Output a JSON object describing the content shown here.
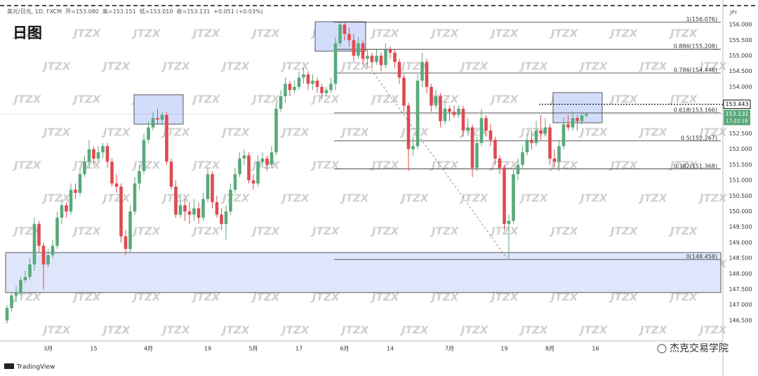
{
  "chart_data": {
    "type": "candlestick",
    "title": "日图",
    "header": {
      "symbol": "美元/日元, 1D, FXCM",
      "items": [
        "开=153.080",
        "高=153.151",
        "低=153.010",
        "收=153.131",
        "+0.051 (+0.03%)"
      ]
    },
    "categories": [
      null,
      null,
      null,
      null,
      null,
      null,
      null,
      null,
      null,
      "3月",
      null,
      null,
      null,
      null,
      null,
      null,
      null,
      null,
      null,
      "15",
      null,
      null,
      null,
      null,
      null,
      null,
      null,
      null,
      null,
      null,
      null,
      "4月",
      null,
      null,
      null,
      null,
      null,
      null,
      null,
      null,
      null,
      null,
      null,
      null,
      "19",
      null,
      null,
      null,
      null,
      null,
      null,
      null,
      null,
      null,
      "5月",
      null,
      null,
      null,
      null,
      null,
      null,
      null,
      null,
      null,
      "17",
      null,
      null,
      null,
      null,
      null,
      null,
      null,
      null,
      null,
      "6月",
      null,
      null,
      null,
      null,
      null,
      null,
      null,
      null,
      null,
      "14",
      null,
      null,
      null,
      null,
      null,
      null,
      null,
      null,
      null,
      null,
      null,
      null,
      "7月",
      null,
      null,
      null,
      null,
      null,
      null,
      null,
      null,
      null,
      null,
      null,
      "19",
      null,
      null,
      null,
      null,
      null,
      null,
      null,
      null,
      null,
      "8月",
      null,
      null,
      null,
      null,
      null,
      null,
      null,
      null,
      null,
      "16"
    ],
    "open": [
      146.5,
      146.9,
      147.3,
      147.4,
      147.8,
      147.9,
      148.3,
      149.6,
      148.9,
      148.3,
      148.6,
      148.9,
      149.8,
      150.2,
      150.0,
      150.7,
      150.6,
      151.2,
      151.6,
      152.0,
      151.7,
      151.9,
      152.1,
      151.6,
      150.9,
      150.8,
      149.2,
      148.8,
      150.0,
      150.9,
      151.3,
      152.3,
      152.7,
      153.0,
      152.95,
      153.1,
      151.6,
      150.8,
      149.9,
      150.2,
      150.0,
      149.9,
      150.1,
      149.8,
      150.4,
      151.2,
      150.3,
      149.9,
      149.6,
      150.0,
      150.7,
      151.2,
      151.7,
      151.8,
      151.0,
      150.9,
      151.6,
      151.7,
      151.5,
      151.9,
      153.3,
      153.7,
      154.1,
      153.9,
      154.0,
      154.3,
      154.4,
      154.1,
      154.2,
      154.0,
      153.8,
      153.9,
      154.1,
      155.4,
      156.0,
      155.7,
      155.5,
      155.0,
      155.4,
      154.9,
      155.0,
      154.8,
      155.0,
      154.7,
      155.2,
      155.1,
      154.8,
      154.3,
      153.4,
      152.0,
      152.1,
      154.2,
      154.8,
      154.0,
      153.4,
      153.7,
      152.9,
      153.3,
      153.2,
      153.1,
      153.3,
      152.6,
      152.7,
      151.4,
      152.2,
      153.0,
      152.6,
      152.3,
      151.7,
      151.4,
      149.6,
      149.7,
      151.2,
      151.5,
      151.9,
      152.3,
      152.2,
      152.6,
      152.5,
      152.7,
      151.7,
      151.6,
      152.1,
      152.8,
      152.7,
      153.0,
      152.9,
      153.08,
      null,
      null
    ],
    "high": [
      147.0,
      147.4,
      147.6,
      147.9,
      148.1,
      148.5,
      149.8,
      149.7,
      149.0,
      148.8,
      149.1,
      150.0,
      150.4,
      150.3,
      150.9,
      150.9,
      151.4,
      151.8,
      152.3,
      152.1,
      152.1,
      152.2,
      152.2,
      151.7,
      151.2,
      150.9,
      149.4,
      150.2,
      151.1,
      151.5,
      152.5,
      152.9,
      153.2,
      153.3,
      153.2,
      153.2,
      151.7,
      151.0,
      150.5,
      150.4,
      150.3,
      150.4,
      150.3,
      150.6,
      151.4,
      151.3,
      150.5,
      150.1,
      150.2,
      150.9,
      151.4,
      151.9,
      152.0,
      151.9,
      151.2,
      151.8,
      151.9,
      151.8,
      152.1,
      153.5,
      153.9,
      154.3,
      154.2,
      154.2,
      154.5,
      154.6,
      154.5,
      154.4,
      154.3,
      154.1,
      154.0,
      154.3,
      155.6,
      156.076,
      156.05,
      155.9,
      155.7,
      155.6,
      155.5,
      155.2,
      155.1,
      155.2,
      155.1,
      155.4,
      155.3,
      155.2,
      154.9,
      154.4,
      153.5,
      152.4,
      154.4,
      155.1,
      154.9,
      154.1,
      153.9,
      153.8,
      153.5,
      153.4,
      153.4,
      153.4,
      153.4,
      153.0,
      152.8,
      152.4,
      153.3,
      153.1,
      152.8,
      152.4,
      151.8,
      151.5,
      149.9,
      151.4,
      151.7,
      152.1,
      152.5,
      152.6,
      152.9,
      153.1,
      153.0,
      152.8,
      152.0,
      152.3,
      153.0,
      153.1,
      153.2,
      153.1,
      153.2,
      153.151,
      null,
      null
    ],
    "low": [
      146.4,
      146.8,
      147.1,
      147.3,
      147.7,
      147.8,
      148.1,
      148.7,
      147.5,
      148.2,
      148.5,
      148.8,
      149.6,
      149.8,
      149.9,
      150.4,
      150.5,
      151.1,
      151.4,
      151.5,
      151.6,
      151.7,
      151.4,
      150.8,
      150.6,
      149.0,
      148.6,
      148.7,
      149.9,
      150.7,
      151.2,
      152.2,
      152.6,
      152.8,
      152.8,
      151.5,
      150.7,
      149.8,
      149.8,
      149.7,
      149.6,
      149.7,
      149.6,
      149.7,
      150.3,
      150.1,
      149.8,
      149.4,
      149.1,
      149.9,
      150.6,
      151.1,
      151.5,
      150.9,
      150.7,
      150.8,
      151.4,
      151.3,
      151.4,
      151.8,
      153.2,
      153.5,
      153.7,
      153.8,
      153.9,
      154.1,
      153.9,
      153.9,
      153.8,
      153.6,
      153.7,
      153.8,
      153.9,
      155.3,
      155.5,
      155.3,
      154.8,
      154.9,
      154.7,
      154.6,
      154.6,
      154.7,
      154.5,
      154.6,
      154.9,
      154.6,
      154.1,
      153.2,
      151.3,
      151.8,
      152.0,
      154.0,
      153.8,
      153.2,
      153.3,
      152.7,
      152.8,
      152.9,
      153.0,
      153.0,
      152.4,
      152.5,
      151.1,
      151.3,
      152.1,
      152.4,
      152.1,
      151.5,
      151.2,
      149.4,
      148.458,
      149.6,
      151.0,
      151.4,
      151.8,
      152.0,
      152.1,
      152.3,
      152.4,
      151.5,
      151.4,
      151.3,
      152.0,
      152.6,
      152.6,
      152.6,
      152.8,
      153.01,
      null,
      null
    ],
    "close": [
      146.9,
      147.3,
      147.4,
      147.8,
      147.9,
      148.3,
      149.6,
      148.9,
      148.3,
      148.6,
      148.9,
      149.8,
      150.2,
      150.0,
      150.7,
      150.6,
      151.2,
      151.6,
      152.0,
      151.7,
      151.9,
      152.1,
      151.6,
      150.9,
      150.8,
      149.2,
      148.8,
      150.0,
      150.9,
      151.3,
      152.3,
      152.7,
      153.0,
      152.95,
      153.1,
      151.6,
      150.8,
      149.9,
      150.2,
      150.0,
      149.9,
      150.1,
      149.8,
      150.4,
      151.2,
      150.3,
      149.9,
      149.6,
      150.0,
      150.7,
      151.2,
      151.7,
      151.8,
      151.0,
      150.9,
      151.6,
      151.7,
      151.5,
      151.9,
      153.3,
      153.7,
      154.1,
      153.9,
      154.0,
      154.3,
      154.4,
      154.1,
      154.2,
      154.0,
      153.8,
      153.9,
      154.1,
      155.4,
      156.0,
      155.7,
      155.5,
      155.0,
      155.4,
      154.9,
      155.0,
      154.8,
      155.0,
      154.7,
      155.2,
      155.1,
      154.8,
      154.3,
      153.4,
      152.0,
      152.1,
      154.2,
      154.8,
      154.0,
      153.4,
      153.7,
      152.9,
      153.3,
      153.2,
      153.1,
      153.3,
      152.6,
      152.7,
      151.4,
      152.2,
      153.0,
      152.6,
      152.3,
      151.7,
      151.4,
      149.6,
      149.7,
      151.2,
      151.5,
      151.9,
      152.3,
      152.2,
      152.6,
      152.5,
      152.7,
      151.7,
      151.6,
      152.1,
      152.8,
      152.7,
      153.0,
      152.9,
      153.08,
      153.131,
      null,
      null
    ],
    "up_color": "#58a97c",
    "down_color": "#df4a4f",
    "ylim": [
      145.89,
      156.79
    ],
    "yticks": [
      {
        "value": 146.5,
        "label": "146.500"
      },
      {
        "value": 147,
        "label": "147.000"
      },
      {
        "value": 147.5,
        "label": "147.500"
      },
      {
        "value": 148,
        "label": "148.000"
      },
      {
        "value": 148.5,
        "label": "148.500"
      },
      {
        "value": 149,
        "label": "149.000"
      },
      {
        "value": 149.5,
        "label": "149.500"
      },
      {
        "value": 150,
        "label": "150.000"
      },
      {
        "value": 150.5,
        "label": "150.500"
      },
      {
        "value": 151,
        "label": "151.000"
      },
      {
        "value": 151.5,
        "label": "151.500"
      },
      {
        "value": 152,
        "label": "152.000"
      },
      {
        "value": 152.5,
        "label": "152.500"
      },
      {
        "value": 154,
        "label": "154.000"
      },
      {
        "value": 154.5,
        "label": "154.500"
      },
      {
        "value": 155,
        "label": "155.000"
      },
      {
        "value": 155.5,
        "label": "155.500"
      },
      {
        "value": 156,
        "label": "156.000"
      }
    ],
    "grid": false,
    "fib_levels": [
      {
        "value": 156.076,
        "label": "1(156.076)"
      },
      {
        "value": 155.208,
        "label": "0.886(155.208)"
      },
      {
        "value": 154.446,
        "label": "0.786(154.446)"
      },
      {
        "value": 153.166,
        "label": "0.618(153.166)"
      },
      {
        "value": 152.267,
        "label": "0.5(152.267)"
      },
      {
        "value": 151.368,
        "label": "0.382(151.368)"
      },
      {
        "value": 148.458,
        "label": "0(148.458)"
      }
    ],
    "alert_level": 153.443,
    "last_price": 153.131,
    "countdown": "17:22:18",
    "currency": "JPY",
    "watermark": "JTZX",
    "source": "TradingView",
    "credit": "杰克交易学院"
  }
}
